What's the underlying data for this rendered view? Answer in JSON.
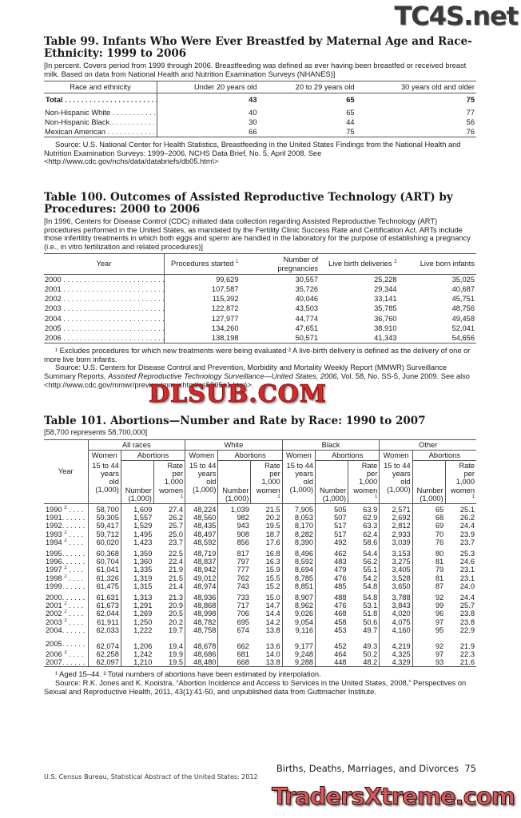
{
  "watermarks": {
    "top": "TC4S.net",
    "middle": "DLSUB.COM",
    "bottom": "TradersXtreme.com"
  },
  "t99": {
    "title": "Table 99. Infants Who Were Ever Breastfed by Maternal Age and Race-Ethnicity: 1999 to 2006",
    "note": "[In percent. Covers period from 1999 through 2006. Breastfeeding was defined as ever having been breastfed or received breast milk. Based on data from National Health and Nutrition Examination Surveys (NHANES)]",
    "headers": [
      "Race and ethnicity",
      "Under 20 years old",
      "20 to 29 years old",
      "30 years old and older"
    ],
    "rows": [
      [
        "Total",
        "43",
        "65",
        "75"
      ],
      [
        "Non-Hispanic White",
        "40",
        "65",
        "77"
      ],
      [
        "Non-Hispanic Black",
        "30",
        "44",
        "56"
      ],
      [
        "Mexican American",
        "66",
        "75",
        "76"
      ]
    ],
    "source": "Source: U.S. National Center for Health Statistics, Breastfeeding in the United States Findings from the National Health and Nutrition Examination Surveys: 1999–2006, NCHS Data Brief, No. 5, April 2008. See <http://www.cdc.gov/nchs/data/databriefs/db05.htm\\>"
  },
  "t100": {
    "title": "Table 100. Outcomes of Assisted Reproductive Technology (ART) by Procedures: 2000 to 2006",
    "note": "[In 1996, Centers for Disease Control (CDC) initiated data collection regarding Assisted Reproductive Technology (ART) procedures performed in the United States, as mandated by the Fertility Clinic Success Rate and Certification Act. ARTs include those infertility treatments in which both eggs and sperm are handled in the laboratory for the purpose of establishing a pregnancy (i.e., in vitro fertilization and related procedures)]",
    "headers": [
      "Year",
      "Procedures started",
      "Number of pregnancies",
      "Live birth deliveries",
      "Live born infants"
    ],
    "header_notes": [
      "",
      "1",
      "",
      "2",
      ""
    ],
    "rows": [
      [
        "2000",
        "99,629",
        "30,557",
        "25,228",
        "35,025"
      ],
      [
        "2001",
        "107,587",
        "35,726",
        "29,344",
        "40,687"
      ],
      [
        "2002",
        "115,392",
        "40,046",
        "33,141",
        "45,751"
      ],
      [
        "2003",
        "122,872",
        "43,503",
        "35,785",
        "48,756"
      ],
      [
        "2004",
        "127,977",
        "44,774",
        "36,760",
        "49,458"
      ],
      [
        "2005",
        "134,260",
        "47,651",
        "38,910",
        "52,041"
      ],
      [
        "2006",
        "138,198",
        "50,571",
        "41,343",
        "54,656"
      ]
    ],
    "footnote": "¹ Excludes procedures for which new treatments were being evaluated ² A live-birth delivery is defined as the delivery of one or more live born infants.",
    "source_pre": "Source: U.S. Centers for Disease Control and Prevention, Morbidity and Mortality Weekly Report (MMWR) Surveillance Summary Reports, ",
    "source_italic": "Assisted Reproductive Technology Surveillance—United States, 2006,",
    "source_post": " Vol. 58, No. SS-5, June 2009. See also <http://www.cdc.gov/mmwr/preview/mmwrhtml/ss5805a1.htm\\>."
  },
  "t101": {
    "title": "Table 101. Abortions—Number and Rate by Race: 1990 to 2007",
    "note": "[58,700 represents 58,700,000]",
    "groups": [
      "All races",
      "White",
      "Black",
      "Other"
    ],
    "year_label": "Year",
    "women_label": "Women",
    "women_sub": "15 to 44 years old (1,000)",
    "abortions_label": "Abortions",
    "number_label": "Number (1,000)",
    "rate_label": "Rate per 1,000 women",
    "rate_note": "1",
    "rows": [
      {
        "year": "1990",
        "note": "2",
        "v": [
          "58,700",
          "1,609",
          "27.4",
          "48,224",
          "1,039",
          "21.5",
          "7,905",
          "505",
          "63.9",
          "2,571",
          "65",
          "25.1"
        ]
      },
      {
        "year": "1991",
        "note": "",
        "v": [
          "59,305",
          "1,557",
          "26.2",
          "48,560",
          "982",
          "20.2",
          "8,053",
          "507",
          "62.9",
          "2,692",
          "68",
          "26.2"
        ]
      },
      {
        "year": "1992",
        "note": "",
        "v": [
          "59,417",
          "1,529",
          "25.7",
          "48,435",
          "943",
          "19.5",
          "8,170",
          "517",
          "63.3",
          "2,812",
          "69",
          "24.4"
        ]
      },
      {
        "year": "1993",
        "note": "2",
        "v": [
          "59,712",
          "1,495",
          "25.0",
          "48,497",
          "908",
          "18.7",
          "8,282",
          "517",
          "62.4",
          "2,933",
          "70",
          "23.9"
        ]
      },
      {
        "year": "1994",
        "note": "2",
        "v": [
          "60,020",
          "1,423",
          "23.7",
          "48,592",
          "856",
          "17.6",
          "8,390",
          "492",
          "58.6",
          "3,039",
          "76",
          "23.7"
        ]
      },
      {
        "year": "1995",
        "note": "",
        "v": [
          "60,368",
          "1,359",
          "22.5",
          "48,719",
          "817",
          "16.8",
          "8,496",
          "462",
          "54.4",
          "3,153",
          "80",
          "25.3"
        ]
      },
      {
        "year": "1996",
        "note": "",
        "v": [
          "60,704",
          "1,360",
          "22.4",
          "48,837",
          "797",
          "16.3",
          "8,592",
          "483",
          "56.2",
          "3,275",
          "81",
          "24.6"
        ]
      },
      {
        "year": "1997",
        "note": "2",
        "v": [
          "61,041",
          "1,335",
          "21.9",
          "48,942",
          "777",
          "15.9",
          "8,694",
          "479",
          "55.1",
          "3,405",
          "79",
          "23.1"
        ]
      },
      {
        "year": "1998",
        "note": "2",
        "v": [
          "61,326",
          "1,319",
          "21.5",
          "49,012",
          "762",
          "15.5",
          "8,785",
          "476",
          "54.2",
          "3,528",
          "81",
          "23.1"
        ]
      },
      {
        "year": "1999",
        "note": "",
        "v": [
          "61,475",
          "1,315",
          "21.4",
          "48,974",
          "743",
          "15.2",
          "8,851",
          "485",
          "54.8",
          "3,650",
          "87",
          "24.0"
        ]
      },
      {
        "year": "2000",
        "note": "",
        "v": [
          "61,631",
          "1,313",
          "21.3",
          "48,936",
          "733",
          "15.0",
          "8,907",
          "488",
          "54.8",
          "3,788",
          "92",
          "24.4"
        ]
      },
      {
        "year": "2001",
        "note": "2",
        "v": [
          "61,673",
          "1,291",
          "20.9",
          "48,868",
          "717",
          "14.7",
          "8,962",
          "476",
          "53.1",
          "3,843",
          "99",
          "25.7"
        ]
      },
      {
        "year": "2002",
        "note": "2",
        "v": [
          "62,044",
          "1,269",
          "20.5",
          "48,998",
          "706",
          "14.4",
          "9,026",
          "468",
          "51.8",
          "4,020",
          "96",
          "23.8"
        ]
      },
      {
        "year": "2003",
        "note": "2",
        "v": [
          "61,911",
          "1,250",
          "20.2",
          "48,782",
          "695",
          "14.2",
          "9,054",
          "458",
          "50.6",
          "4,075",
          "97",
          "23.8"
        ]
      },
      {
        "year": "2004",
        "note": "",
        "v": [
          "62,033",
          "1,222",
          "19.7",
          "48,758",
          "674",
          "13.8",
          "9,116",
          "453",
          "49.7",
          "4,160",
          "95",
          "22.9"
        ]
      },
      {
        "year": "2005",
        "note": "",
        "v": [
          "62,074",
          "1,206",
          "19.4",
          "48,678",
          "662",
          "13.6",
          "9,177",
          "452",
          "49.3",
          "4,219",
          "92",
          "21.9"
        ]
      },
      {
        "year": "2006",
        "note": "2",
        "v": [
          "62,258",
          "1,242",
          "19.9",
          "48,686",
          "681",
          "14.0",
          "9,248",
          "464",
          "50.2",
          "4,325",
          "97",
          "22.3"
        ]
      },
      {
        "year": "2007",
        "note": "",
        "v": [
          "62,097",
          "1,210",
          "19.5",
          "48,480",
          "668",
          "13.8",
          "9,288",
          "448",
          "48.2",
          "4,329",
          "93",
          "21.6"
        ]
      }
    ],
    "footnote": "¹ Aged 15–44. ² Total numbers of abortions have been estimated by interpolation.",
    "source": "Source: R.K. Jones and K. Kooistra, “Abortion Incidence and Access to Services in the United States, 2008,” Perspectives on Sexual and Reproductive Health, 2011, 43(1):41-50, and unpublished data from Guttmacher Institute."
  },
  "footer": {
    "chapter": "Births, Deaths, Marriages, and Divorces",
    "page": "75",
    "publication": "U.S. Census Bureau, Statistical Abstract of the United States: 2012"
  }
}
